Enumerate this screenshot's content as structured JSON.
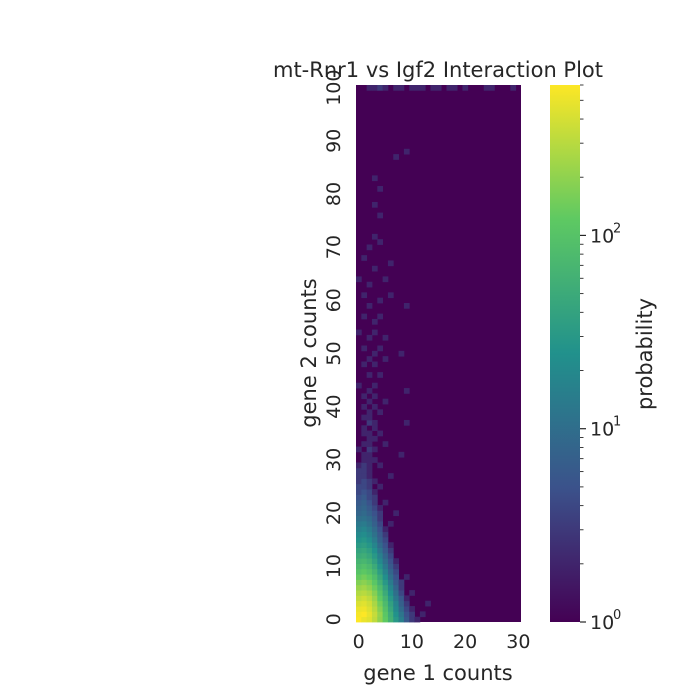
{
  "chart_data": {
    "type": "heatmap",
    "title": "mt-Rnr1 vs Igf2 Interaction Plot",
    "xlabel": "gene 1 counts",
    "ylabel": "gene 2 counts",
    "x_range": [
      0,
      30
    ],
    "y_range": [
      0,
      100
    ],
    "x_ticks": [
      "0",
      "10",
      "20",
      "30"
    ],
    "y_ticks": [
      "0",
      "10",
      "20",
      "30",
      "40",
      "50",
      "60",
      "70",
      "80",
      "90",
      "100"
    ],
    "colorbar": {
      "label": "probability",
      "scale": "log",
      "range": [
        1,
        600
      ],
      "ticks": [
        {
          "value": 1,
          "base": "10",
          "exp": "0"
        },
        {
          "value": 10,
          "base": "10",
          "exp": "1"
        },
        {
          "value": 100,
          "base": "10",
          "exp": "2"
        }
      ],
      "colormap": [
        "#440154",
        "#3b528b",
        "#21918c",
        "#5ec962",
        "#fde725"
      ]
    },
    "description_of_values": "log-scale probability per (gene1, gene2) count bin; max near (1,1), decays along both axes",
    "cells": [
      [
        0,
        0,
        600
      ],
      [
        1,
        0,
        500
      ],
      [
        2,
        0,
        450
      ],
      [
        3,
        0,
        320
      ],
      [
        4,
        0,
        200
      ],
      [
        5,
        0,
        120
      ],
      [
        6,
        0,
        60
      ],
      [
        7,
        0,
        30
      ],
      [
        8,
        0,
        15
      ],
      [
        9,
        0,
        6
      ],
      [
        10,
        0,
        3
      ],
      [
        11,
        0,
        2
      ],
      [
        0,
        1,
        560
      ],
      [
        1,
        1,
        600
      ],
      [
        2,
        1,
        480
      ],
      [
        3,
        1,
        340
      ],
      [
        4,
        1,
        210
      ],
      [
        5,
        1,
        110
      ],
      [
        6,
        1,
        55
      ],
      [
        7,
        1,
        25
      ],
      [
        8,
        1,
        12
      ],
      [
        9,
        1,
        5
      ],
      [
        10,
        1,
        3
      ],
      [
        12,
        1,
        2
      ],
      [
        0,
        2,
        500
      ],
      [
        1,
        2,
        520
      ],
      [
        2,
        2,
        430
      ],
      [
        3,
        2,
        300
      ],
      [
        4,
        2,
        180
      ],
      [
        5,
        2,
        95
      ],
      [
        6,
        2,
        45
      ],
      [
        7,
        2,
        20
      ],
      [
        8,
        2,
        9
      ],
      [
        9,
        2,
        4
      ],
      [
        10,
        2,
        2
      ],
      [
        0,
        3,
        420
      ],
      [
        1,
        3,
        450
      ],
      [
        2,
        3,
        380
      ],
      [
        3,
        3,
        260
      ],
      [
        4,
        3,
        150
      ],
      [
        5,
        3,
        80
      ],
      [
        6,
        3,
        38
      ],
      [
        7,
        3,
        17
      ],
      [
        8,
        3,
        7
      ],
      [
        9,
        3,
        3
      ],
      [
        13,
        3,
        2
      ],
      [
        0,
        4,
        340
      ],
      [
        1,
        4,
        380
      ],
      [
        2,
        4,
        320
      ],
      [
        3,
        4,
        220
      ],
      [
        4,
        4,
        120
      ],
      [
        5,
        4,
        65
      ],
      [
        6,
        4,
        30
      ],
      [
        7,
        4,
        13
      ],
      [
        8,
        4,
        6
      ],
      [
        9,
        4,
        2
      ],
      [
        0,
        5,
        280
      ],
      [
        1,
        5,
        300
      ],
      [
        2,
        5,
        260
      ],
      [
        3,
        5,
        180
      ],
      [
        4,
        5,
        100
      ],
      [
        5,
        5,
        50
      ],
      [
        6,
        5,
        24
      ],
      [
        7,
        5,
        10
      ],
      [
        8,
        5,
        4
      ],
      [
        10,
        5,
        2
      ],
      [
        0,
        6,
        220
      ],
      [
        1,
        6,
        240
      ],
      [
        2,
        6,
        200
      ],
      [
        3,
        6,
        140
      ],
      [
        4,
        6,
        80
      ],
      [
        5,
        6,
        40
      ],
      [
        6,
        6,
        18
      ],
      [
        7,
        6,
        8
      ],
      [
        8,
        6,
        3
      ],
      [
        0,
        7,
        170
      ],
      [
        1,
        7,
        190
      ],
      [
        2,
        7,
        160
      ],
      [
        3,
        7,
        110
      ],
      [
        4,
        7,
        60
      ],
      [
        5,
        7,
        30
      ],
      [
        6,
        7,
        14
      ],
      [
        7,
        7,
        6
      ],
      [
        8,
        7,
        3
      ],
      [
        0,
        8,
        130
      ],
      [
        1,
        8,
        150
      ],
      [
        2,
        8,
        125
      ],
      [
        3,
        8,
        85
      ],
      [
        4,
        8,
        46
      ],
      [
        5,
        8,
        23
      ],
      [
        6,
        8,
        10
      ],
      [
        7,
        8,
        5
      ],
      [
        9,
        8,
        2
      ],
      [
        0,
        9,
        100
      ],
      [
        1,
        9,
        115
      ],
      [
        2,
        9,
        95
      ],
      [
        3,
        9,
        65
      ],
      [
        4,
        9,
        35
      ],
      [
        5,
        9,
        17
      ],
      [
        6,
        9,
        8
      ],
      [
        7,
        9,
        4
      ],
      [
        0,
        10,
        80
      ],
      [
        1,
        10,
        90
      ],
      [
        2,
        10,
        75
      ],
      [
        3,
        10,
        50
      ],
      [
        4,
        10,
        27
      ],
      [
        5,
        10,
        13
      ],
      [
        6,
        10,
        6
      ],
      [
        7,
        10,
        3
      ],
      [
        0,
        11,
        65
      ],
      [
        1,
        11,
        70
      ],
      [
        2,
        11,
        58
      ],
      [
        3,
        11,
        38
      ],
      [
        4,
        11,
        20
      ],
      [
        5,
        11,
        10
      ],
      [
        6,
        11,
        5
      ],
      [
        7,
        11,
        2
      ],
      [
        0,
        12,
        50
      ],
      [
        1,
        12,
        55
      ],
      [
        2,
        12,
        45
      ],
      [
        3,
        12,
        30
      ],
      [
        4,
        12,
        16
      ],
      [
        5,
        12,
        8
      ],
      [
        6,
        12,
        4
      ],
      [
        0,
        13,
        40
      ],
      [
        1,
        13,
        44
      ],
      [
        2,
        13,
        36
      ],
      [
        3,
        13,
        24
      ],
      [
        4,
        13,
        12
      ],
      [
        5,
        13,
        6
      ],
      [
        6,
        13,
        3
      ],
      [
        0,
        14,
        32
      ],
      [
        1,
        14,
        35
      ],
      [
        2,
        14,
        28
      ],
      [
        3,
        14,
        18
      ],
      [
        4,
        14,
        9
      ],
      [
        5,
        14,
        5
      ],
      [
        6,
        14,
        2
      ],
      [
        0,
        15,
        25
      ],
      [
        1,
        15,
        28
      ],
      [
        2,
        15,
        22
      ],
      [
        3,
        15,
        14
      ],
      [
        4,
        15,
        7
      ],
      [
        5,
        15,
        4
      ],
      [
        0,
        16,
        20
      ],
      [
        1,
        16,
        22
      ],
      [
        2,
        16,
        17
      ],
      [
        3,
        16,
        11
      ],
      [
        4,
        16,
        6
      ],
      [
        5,
        16,
        3
      ],
      [
        0,
        17,
        16
      ],
      [
        1,
        17,
        18
      ],
      [
        2,
        17,
        14
      ],
      [
        3,
        17,
        9
      ],
      [
        4,
        17,
        5
      ],
      [
        5,
        17,
        2
      ],
      [
        0,
        18,
        13
      ],
      [
        1,
        18,
        14
      ],
      [
        2,
        18,
        11
      ],
      [
        3,
        18,
        7
      ],
      [
        4,
        18,
        4
      ],
      [
        6,
        18,
        2
      ],
      [
        0,
        19,
        10
      ],
      [
        1,
        19,
        11
      ],
      [
        2,
        19,
        9
      ],
      [
        3,
        19,
        6
      ],
      [
        4,
        19,
        3
      ],
      [
        0,
        20,
        8
      ],
      [
        1,
        20,
        9
      ],
      [
        2,
        20,
        7
      ],
      [
        3,
        20,
        5
      ],
      [
        4,
        20,
        3
      ],
      [
        7,
        20,
        2
      ],
      [
        0,
        21,
        7
      ],
      [
        1,
        21,
        8
      ],
      [
        2,
        21,
        6
      ],
      [
        3,
        21,
        4
      ],
      [
        4,
        21,
        2
      ],
      [
        0,
        22,
        6
      ],
      [
        1,
        22,
        7
      ],
      [
        2,
        22,
        5
      ],
      [
        3,
        22,
        3
      ],
      [
        5,
        22,
        2
      ],
      [
        0,
        23,
        5
      ],
      [
        1,
        23,
        6
      ],
      [
        2,
        23,
        4
      ],
      [
        3,
        23,
        3
      ],
      [
        0,
        24,
        4
      ],
      [
        1,
        24,
        5
      ],
      [
        2,
        24,
        4
      ],
      [
        3,
        24,
        2
      ],
      [
        0,
        25,
        4
      ],
      [
        1,
        25,
        4
      ],
      [
        2,
        25,
        3
      ],
      [
        4,
        25,
        2
      ],
      [
        0,
        26,
        3
      ],
      [
        1,
        26,
        4
      ],
      [
        2,
        26,
        3
      ],
      [
        3,
        26,
        2
      ],
      [
        0,
        27,
        3
      ],
      [
        1,
        27,
        3
      ],
      [
        2,
        27,
        2
      ],
      [
        6,
        27,
        2
      ],
      [
        0,
        28,
        3
      ],
      [
        1,
        28,
        3
      ],
      [
        2,
        28,
        2
      ],
      [
        0,
        29,
        2
      ],
      [
        1,
        29,
        3
      ],
      [
        2,
        29,
        2
      ],
      [
        4,
        29,
        2
      ],
      [
        1,
        30,
        2
      ],
      [
        2,
        30,
        2
      ],
      [
        3,
        30,
        2
      ],
      [
        1,
        31,
        2
      ],
      [
        2,
        31,
        2
      ],
      [
        8,
        31,
        2
      ],
      [
        0,
        32,
        2
      ],
      [
        2,
        32,
        3
      ],
      [
        3,
        32,
        2
      ],
      [
        1,
        33,
        2
      ],
      [
        2,
        33,
        2
      ],
      [
        5,
        33,
        2
      ],
      [
        2,
        34,
        2
      ],
      [
        3,
        34,
        2
      ],
      [
        1,
        35,
        2
      ],
      [
        2,
        35,
        2
      ],
      [
        4,
        35,
        2
      ],
      [
        1,
        36,
        2
      ],
      [
        3,
        36,
        2
      ],
      [
        2,
        37,
        3
      ],
      [
        3,
        37,
        2
      ],
      [
        9,
        37,
        2
      ],
      [
        1,
        38,
        2
      ],
      [
        2,
        38,
        2
      ],
      [
        2,
        39,
        2
      ],
      [
        4,
        39,
        2
      ],
      [
        1,
        40,
        2
      ],
      [
        3,
        40,
        2
      ],
      [
        2,
        41,
        2
      ],
      [
        5,
        41,
        2
      ],
      [
        1,
        42,
        2
      ],
      [
        3,
        42,
        2
      ],
      [
        2,
        43,
        2
      ],
      [
        9,
        43,
        2
      ],
      [
        0,
        44,
        2
      ],
      [
        3,
        44,
        2
      ],
      [
        2,
        46,
        2
      ],
      [
        4,
        46,
        2
      ],
      [
        1,
        48,
        2
      ],
      [
        3,
        48,
        2
      ],
      [
        2,
        49,
        2
      ],
      [
        5,
        49,
        2
      ],
      [
        3,
        50,
        2
      ],
      [
        8,
        50,
        2
      ],
      [
        1,
        51,
        2
      ],
      [
        4,
        51,
        2
      ],
      [
        2,
        53,
        2
      ],
      [
        5,
        53,
        2
      ],
      [
        0,
        54,
        2
      ],
      [
        3,
        54,
        2
      ],
      [
        3,
        56,
        2
      ],
      [
        1,
        57,
        2
      ],
      [
        4,
        57,
        2
      ],
      [
        2,
        59,
        2
      ],
      [
        9,
        59,
        2
      ],
      [
        4,
        60,
        2
      ],
      [
        1,
        61,
        2
      ],
      [
        6,
        61,
        2
      ],
      [
        2,
        63,
        2
      ],
      [
        0,
        64,
        2
      ],
      [
        5,
        64,
        2
      ],
      [
        3,
        66,
        2
      ],
      [
        6,
        67,
        2
      ],
      [
        1,
        68,
        2
      ],
      [
        2,
        70,
        2
      ],
      [
        4,
        71,
        2
      ],
      [
        3,
        72,
        2
      ],
      [
        4,
        76,
        2
      ],
      [
        3,
        78,
        2
      ],
      [
        4,
        81,
        2
      ],
      [
        3,
        83,
        2
      ],
      [
        7,
        87,
        2
      ],
      [
        9,
        88,
        2
      ],
      [
        2,
        100,
        2
      ],
      [
        3,
        100,
        2
      ],
      [
        4,
        100,
        3
      ],
      [
        5,
        100,
        2
      ],
      [
        7,
        100,
        2
      ],
      [
        8,
        100,
        2
      ],
      [
        10,
        100,
        2
      ],
      [
        11,
        100,
        2
      ],
      [
        12,
        100,
        2
      ],
      [
        14,
        100,
        2
      ],
      [
        15,
        100,
        2
      ],
      [
        17,
        100,
        2
      ],
      [
        18,
        100,
        2
      ],
      [
        20,
        100,
        2
      ],
      [
        24,
        100,
        2
      ],
      [
        25,
        100,
        2
      ],
      [
        29,
        100,
        2
      ]
    ]
  }
}
